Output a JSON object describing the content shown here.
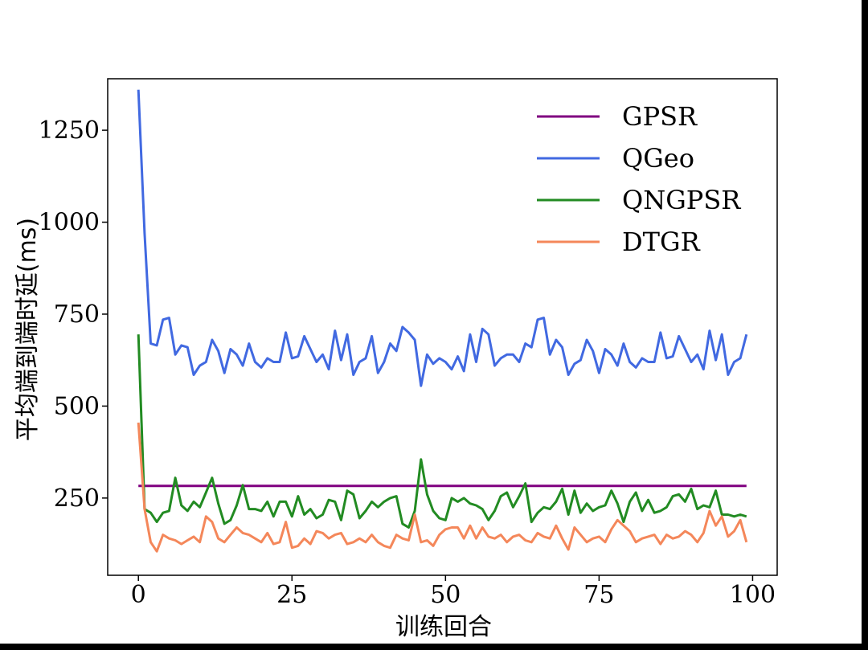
{
  "chart_data": {
    "type": "line",
    "title": "",
    "xlabel": "训练回合",
    "ylabel": "平均端到端时延(ms)",
    "xlim": [
      -5,
      104
    ],
    "ylim": [
      40,
      1390
    ],
    "xticks": [
      0,
      25,
      50,
      75,
      100
    ],
    "yticks": [
      250,
      500,
      750,
      1000,
      1250
    ],
    "grid": false,
    "legend_position": "top-right",
    "series": [
      {
        "name": "GPSR",
        "color": "#800080",
        "x": [
          0,
          99
        ],
        "y": [
          283,
          283
        ]
      },
      {
        "name": "QGeo",
        "color": "#4169e1",
        "y": [
          1360,
          970,
          670,
          665,
          735,
          740,
          640,
          665,
          660,
          585,
          610,
          620,
          680,
          650,
          590,
          655,
          640,
          610,
          670,
          620,
          605,
          630,
          620,
          620,
          700,
          630,
          635,
          690,
          655,
          620,
          640,
          600,
          705,
          625,
          695,
          585,
          620,
          630,
          690,
          590,
          620,
          670,
          650,
          715,
          700,
          680,
          555,
          640,
          615,
          630,
          620,
          600,
          635,
          595,
          695,
          620,
          710,
          695,
          610,
          630,
          640,
          640,
          620,
          670,
          660,
          735,
          740,
          640,
          680,
          660,
          585,
          615,
          625,
          680,
          650,
          590,
          655,
          640,
          610,
          670,
          620,
          605,
          630,
          620,
          620,
          700,
          630,
          635,
          690,
          655,
          620,
          640,
          600,
          705,
          625,
          695,
          585,
          620,
          630,
          695
        ]
      },
      {
        "name": "QNGPSR",
        "color": "#228b22",
        "y": [
          695,
          220,
          210,
          185,
          210,
          215,
          305,
          230,
          215,
          240,
          225,
          265,
          305,
          235,
          180,
          190,
          230,
          285,
          220,
          220,
          215,
          240,
          200,
          240,
          240,
          200,
          255,
          205,
          220,
          195,
          205,
          245,
          240,
          190,
          270,
          260,
          195,
          215,
          240,
          225,
          240,
          250,
          255,
          180,
          170,
          215,
          355,
          260,
          215,
          195,
          190,
          250,
          240,
          250,
          235,
          230,
          220,
          190,
          215,
          255,
          265,
          225,
          255,
          290,
          185,
          210,
          225,
          220,
          240,
          275,
          205,
          270,
          210,
          235,
          215,
          225,
          230,
          270,
          235,
          185,
          240,
          265,
          215,
          245,
          210,
          215,
          225,
          255,
          260,
          240,
          275,
          220,
          230,
          225,
          270,
          205,
          205,
          200,
          205,
          200
        ]
      },
      {
        "name": "DTGR",
        "color": "#f4875a",
        "y": [
          455,
          220,
          130,
          105,
          150,
          140,
          135,
          125,
          135,
          145,
          130,
          200,
          185,
          140,
          130,
          150,
          170,
          155,
          150,
          140,
          130,
          155,
          125,
          130,
          185,
          115,
          120,
          140,
          125,
          160,
          155,
          140,
          150,
          155,
          125,
          130,
          140,
          130,
          150,
          130,
          120,
          115,
          150,
          140,
          135,
          205,
          130,
          135,
          120,
          150,
          165,
          170,
          170,
          140,
          175,
          140,
          170,
          145,
          140,
          150,
          130,
          145,
          150,
          135,
          130,
          155,
          145,
          140,
          175,
          140,
          110,
          170,
          150,
          130,
          140,
          145,
          130,
          165,
          190,
          175,
          160,
          130,
          140,
          145,
          150,
          125,
          150,
          140,
          145,
          160,
          150,
          130,
          155,
          215,
          175,
          200,
          145,
          160,
          190,
          130
        ]
      }
    ]
  }
}
